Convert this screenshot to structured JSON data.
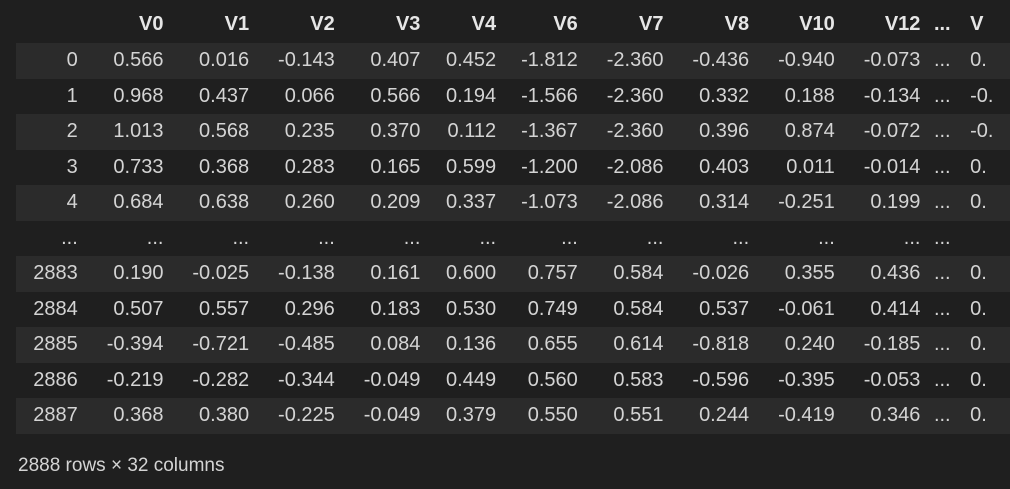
{
  "table": {
    "columns": [
      "V0",
      "V1",
      "V2",
      "V3",
      "V4",
      "V6",
      "V7",
      "V8",
      "V10",
      "V12",
      "...",
      "V"
    ],
    "rows": [
      {
        "index": "0",
        "cells": [
          "0.566",
          "0.016",
          "-0.143",
          "0.407",
          "0.452",
          "-1.812",
          "-2.360",
          "-0.436",
          "-0.940",
          "-0.073",
          "...",
          "0."
        ]
      },
      {
        "index": "1",
        "cells": [
          "0.968",
          "0.437",
          "0.066",
          "0.566",
          "0.194",
          "-1.566",
          "-2.360",
          "0.332",
          "0.188",
          "-0.134",
          "...",
          "-0."
        ]
      },
      {
        "index": "2",
        "cells": [
          "1.013",
          "0.568",
          "0.235",
          "0.370",
          "0.112",
          "-1.367",
          "-2.360",
          "0.396",
          "0.874",
          "-0.072",
          "...",
          "-0."
        ]
      },
      {
        "index": "3",
        "cells": [
          "0.733",
          "0.368",
          "0.283",
          "0.165",
          "0.599",
          "-1.200",
          "-2.086",
          "0.403",
          "0.011",
          "-0.014",
          "...",
          "0."
        ]
      },
      {
        "index": "4",
        "cells": [
          "0.684",
          "0.638",
          "0.260",
          "0.209",
          "0.337",
          "-1.073",
          "-2.086",
          "0.314",
          "-0.251",
          "0.199",
          "...",
          "0."
        ]
      },
      {
        "index": "...",
        "cells": [
          "...",
          "...",
          "...",
          "...",
          "...",
          "...",
          "...",
          "...",
          "...",
          "...",
          "...",
          ""
        ]
      },
      {
        "index": "2883",
        "cells": [
          "0.190",
          "-0.025",
          "-0.138",
          "0.161",
          "0.600",
          "0.757",
          "0.584",
          "-0.026",
          "0.355",
          "0.436",
          "...",
          "0."
        ]
      },
      {
        "index": "2884",
        "cells": [
          "0.507",
          "0.557",
          "0.296",
          "0.183",
          "0.530",
          "0.749",
          "0.584",
          "0.537",
          "-0.061",
          "0.414",
          "...",
          "0."
        ]
      },
      {
        "index": "2885",
        "cells": [
          "-0.394",
          "-0.721",
          "-0.485",
          "0.084",
          "0.136",
          "0.655",
          "0.614",
          "-0.818",
          "0.240",
          "-0.185",
          "...",
          "0."
        ]
      },
      {
        "index": "2886",
        "cells": [
          "-0.219",
          "-0.282",
          "-0.344",
          "-0.049",
          "0.449",
          "0.560",
          "0.583",
          "-0.596",
          "-0.395",
          "-0.053",
          "...",
          "0."
        ]
      },
      {
        "index": "2887",
        "cells": [
          "0.368",
          "0.380",
          "-0.225",
          "-0.049",
          "0.379",
          "0.550",
          "0.551",
          "0.244",
          "-0.419",
          "0.346",
          "...",
          "0."
        ]
      }
    ]
  },
  "footer": {
    "shape": "2888 rows × 32 columns"
  },
  "colors": {
    "background": "#1f1f1f",
    "row_alt": "#2b2b2b",
    "text": "#d4d4d4"
  }
}
